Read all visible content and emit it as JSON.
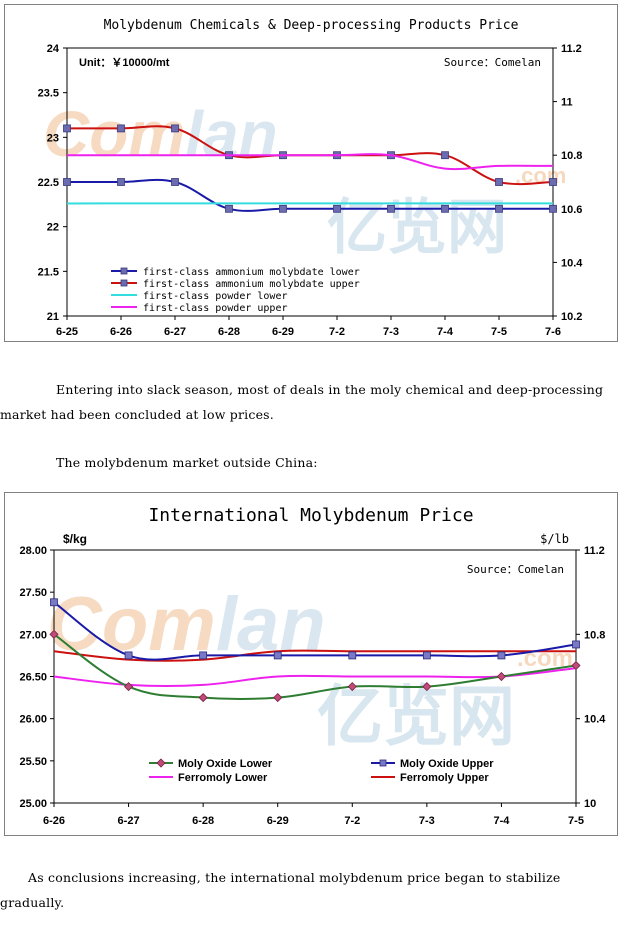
{
  "chart_data": [
    {
      "type": "line",
      "title": "Molybdenum Chemicals & Deep-processing Products Price",
      "unit_label": "Unit：￥10000/mt",
      "source_label": "Source：Comelan",
      "categories": [
        "6-25",
        "6-26",
        "6-27",
        "6-28",
        "6-29",
        "7-2",
        "7-3",
        "7-4",
        "7-5",
        "7-6"
      ],
      "y_left": {
        "lim": [
          21,
          24
        ],
        "ticks": [
          "21",
          "21.5",
          "22",
          "22.5",
          "23",
          "23.5",
          "24"
        ]
      },
      "y_right": {
        "lim": [
          10.2,
          11.2
        ],
        "ticks": [
          "10.2",
          "10.4",
          "10.6",
          "10.8",
          "11",
          "11.2"
        ]
      },
      "series": [
        {
          "name": "first-class ammonium molybdate lower",
          "axis": "left",
          "color": "#1a1aa8",
          "marker": true,
          "values": [
            22.5,
            22.5,
            22.5,
            22.2,
            22.2,
            22.2,
            22.2,
            22.2,
            22.2,
            22.2
          ]
        },
        {
          "name": "first-class ammonium molybdate upper",
          "axis": "left",
          "color": "#cc1111",
          "marker": true,
          "values": [
            23.1,
            23.1,
            23.1,
            22.8,
            22.8,
            22.8,
            22.8,
            22.8,
            22.5,
            22.5
          ]
        },
        {
          "name": "first-class powder lower",
          "axis": "right",
          "color": "#33dddd",
          "marker": false,
          "values": [
            10.62,
            10.62,
            10.62,
            10.62,
            10.62,
            10.62,
            10.62,
            10.62,
            10.62,
            10.62
          ]
        },
        {
          "name": "first-class powder upper",
          "axis": "right",
          "color": "#ee22ee",
          "marker": false,
          "values": [
            10.8,
            10.8,
            10.8,
            10.8,
            10.8,
            10.8,
            10.8,
            10.75,
            10.76,
            10.76
          ]
        }
      ],
      "legend": "bottom-left",
      "grid": false
    },
    {
      "type": "line",
      "title": "International Molybdenum Price",
      "left_unit": "$/kg",
      "right_unit": "$/lb",
      "source_label": "Source：Comelan",
      "categories": [
        "6-26",
        "6-27",
        "6-28",
        "6-29",
        "7-2",
        "7-3",
        "7-4",
        "7-5"
      ],
      "y_left": {
        "lim": [
          25,
          28
        ],
        "ticks": [
          "25.00",
          "25.50",
          "26.00",
          "26.50",
          "27.00",
          "27.50",
          "28.00"
        ]
      },
      "y_right": {
        "lim": [
          10,
          11.2
        ],
        "ticks": [
          "10",
          "10.4",
          "10.8",
          "11.2"
        ]
      },
      "series": [
        {
          "name": "Moly Oxide Lower",
          "axis": "left",
          "color": "#2e7d32",
          "marker": "diamond",
          "values": [
            27.0,
            26.38,
            26.25,
            26.25,
            26.38,
            26.38,
            26.5,
            26.63
          ]
        },
        {
          "name": "Moly Oxide Upper",
          "axis": "left",
          "color": "#1a1aa8",
          "marker": "square",
          "values": [
            27.38,
            26.75,
            26.75,
            26.75,
            26.75,
            26.75,
            26.75,
            26.88
          ]
        },
        {
          "name": "Ferromoly Lower",
          "axis": "left",
          "color": "#ee22ee",
          "marker": false,
          "values": [
            26.5,
            26.4,
            26.4,
            26.5,
            26.5,
            26.5,
            26.5,
            26.6
          ]
        },
        {
          "name": "Ferromoly Upper",
          "axis": "left",
          "color": "#cc1111",
          "marker": false,
          "values": [
            26.8,
            26.7,
            26.7,
            26.8,
            26.8,
            26.8,
            26.8,
            26.8
          ]
        }
      ],
      "legend": "bottom",
      "grid": false
    }
  ],
  "watermark": {
    "brand": "Com",
    "brand2": "lan",
    "domain": ".com",
    "chinese": "亿览网",
    "color": "#f2c49a",
    "color2": "#c9dbe8"
  },
  "text": {
    "p1": "Entering into slack season, most of deals in the moly chemical and deep-processing market had been concluded at low prices.",
    "p2": "The molybdenum market outside China:",
    "p3": "As conclusions increasing, the international molybdenum price began to stabilize gradually."
  }
}
